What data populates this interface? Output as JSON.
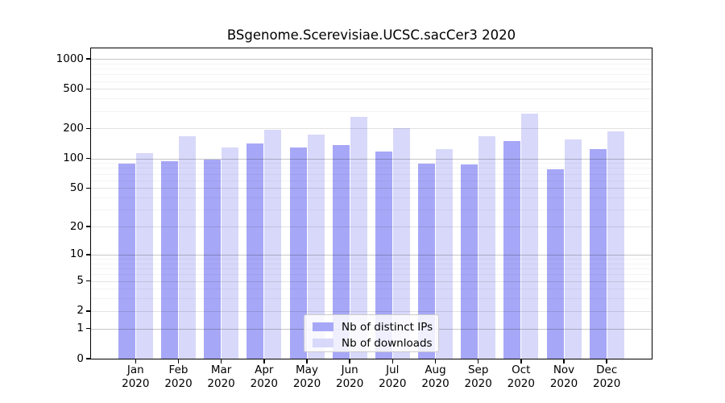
{
  "chart_data": {
    "type": "bar",
    "title": "BSgenome.Scerevisiae.UCSC.sacCer3 2020",
    "yscale": "log1p",
    "ylim": [
      0,
      1273
    ],
    "grid": true,
    "legend_position": "lower-center",
    "y_ticks": [
      0,
      1,
      2,
      5,
      10,
      20,
      50,
      100,
      200,
      500,
      1000
    ],
    "categories": [
      "Jan",
      "Feb",
      "Mar",
      "Apr",
      "May",
      "Jun",
      "Jul",
      "Aug",
      "Sep",
      "Oct",
      "Nov",
      "Dec"
    ],
    "x_tick_second_line": "2020",
    "series": [
      {
        "name": "Nb of distinct IPs",
        "color": "#a7a7f7",
        "values": [
          89,
          93,
          97,
          142,
          128,
          137,
          118,
          88,
          87,
          150,
          77,
          125
        ]
      },
      {
        "name": "Nb of downloads",
        "color": "#d8d8fa",
        "values": [
          114,
          167,
          129,
          195,
          173,
          264,
          201,
          125,
          169,
          281,
          155,
          187
        ]
      }
    ]
  }
}
